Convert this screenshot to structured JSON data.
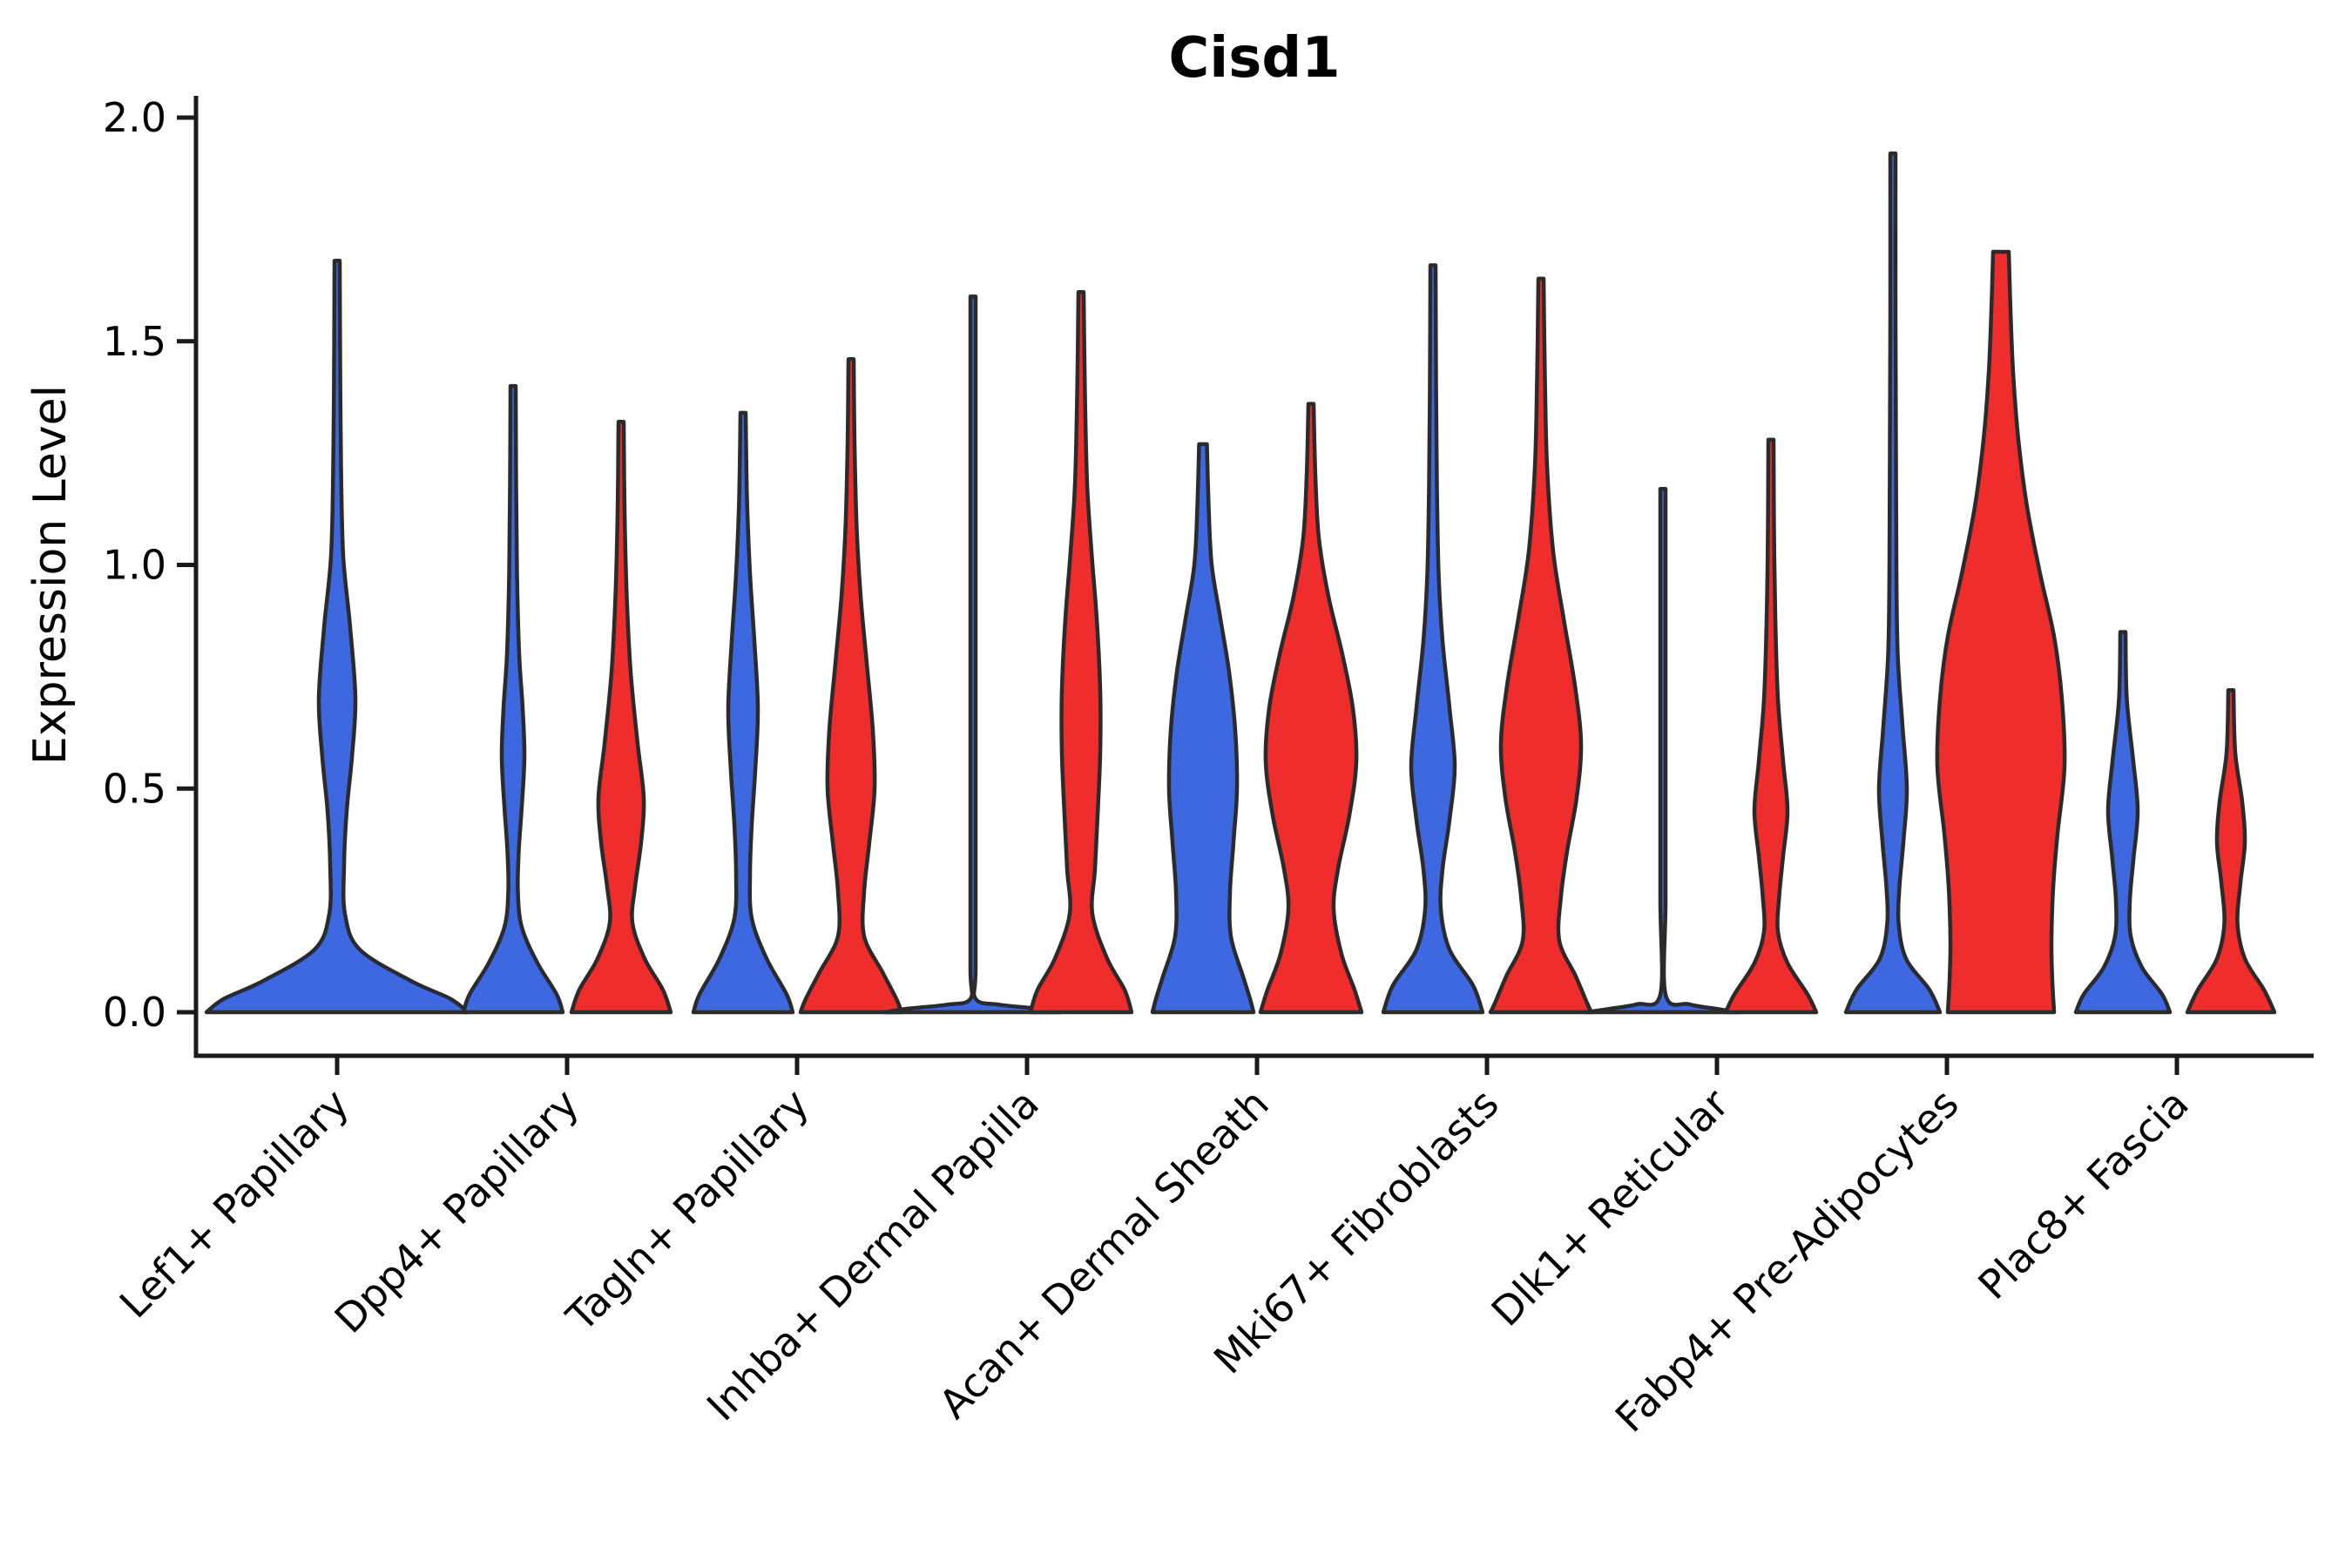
{
  "figure": {
    "title": "Cisd1",
    "y_axis": {
      "label": "Expression Level",
      "ticks": [
        {
          "label": "2.0",
          "value": 2.0
        },
        {
          "label": "1.5",
          "value": 1.5
        },
        {
          "label": "1.0",
          "value": 1.0
        },
        {
          "label": "0.5",
          "value": 0.5
        },
        {
          "label": "0.0",
          "value": 0.0
        }
      ]
    },
    "x_axis": {
      "categories": [
        "Lef1+ Papillary",
        "Dpp4+ Papillary",
        "Tagln+ Papillary",
        "Inhba+ Dermal Papilla",
        "Acan+ Dermal Sheath",
        "Mki67+ Fibroblasts",
        "Dlk1+ Reticular",
        "Fabp4+ Pre-Adipocytes",
        "Plac8+ Fascia"
      ]
    },
    "colors": {
      "blue_fill": "#3E68E0",
      "red_fill": "#EF2D2D",
      "outline": "#2B2B2B",
      "axis": "#1A1A1A"
    }
  },
  "chart_data": {
    "type": "violin",
    "title": "Cisd1",
    "xlabel": "",
    "ylabel": "Expression Level",
    "ylim": [
      -0.09,
      2.05
    ],
    "grid": false,
    "legend": "none",
    "categories": [
      "Lef1+ Papillary",
      "Dpp4+ Papillary",
      "Tagln+ Papillary",
      "Inhba+ Dermal Papilla",
      "Acan+ Dermal Sheath",
      "Mki67+ Fibroblasts",
      "Dlk1+ Reticular",
      "Fabp4+ Pre-Adipocytes",
      "Plac8+ Fascia"
    ],
    "series": [
      {
        "name": "group-blue",
        "color": "#3E68E0"
      },
      {
        "name": "group-red",
        "color": "#EF2D2D"
      }
    ],
    "max_expression": [
      {
        "category": "Lef1+ Papillary",
        "blue": 1.68,
        "red": null
      },
      {
        "category": "Dpp4+ Papillary",
        "blue": 1.4,
        "red": 1.32
      },
      {
        "category": "Tagln+ Papillary",
        "blue": 1.34,
        "red": 1.46
      },
      {
        "category": "Inhba+ Dermal Papilla",
        "blue": 1.6,
        "red": 1.61
      },
      {
        "category": "Acan+ Dermal Sheath",
        "blue": 1.27,
        "red": 1.36
      },
      {
        "category": "Mki67+ Fibroblasts",
        "blue": 1.67,
        "red": 1.64
      },
      {
        "category": "Dlk1+ Reticular",
        "blue": 1.17,
        "red": 1.28
      },
      {
        "category": "Fabp4+ Pre-Adipocytes",
        "blue": 1.92,
        "red": 1.7
      },
      {
        "category": "Plac8+ Fascia",
        "blue": 0.85,
        "red": 0.72
      }
    ],
    "violins": [
      {
        "category_index": 0,
        "group": "blue",
        "align": "center",
        "profile": [
          [
            1.68,
            3
          ],
          [
            1.45,
            3.5
          ],
          [
            1.22,
            4.5
          ],
          [
            1.02,
            7
          ],
          [
            0.86,
            15
          ],
          [
            0.7,
            21
          ],
          [
            0.57,
            17
          ],
          [
            0.45,
            11
          ],
          [
            0.33,
            8
          ],
          [
            0.22,
            9
          ],
          [
            0.14,
            26
          ],
          [
            0.07,
            85
          ],
          [
            0.03,
            130
          ],
          [
            0,
            150
          ]
        ]
      },
      {
        "category_index": 1,
        "group": "blue",
        "align": "left",
        "profile": [
          [
            1.4,
            3
          ],
          [
            1.18,
            3.5
          ],
          [
            0.98,
            4.5
          ],
          [
            0.8,
            7
          ],
          [
            0.68,
            11
          ],
          [
            0.57,
            13
          ],
          [
            0.46,
            10
          ],
          [
            0.36,
            6.5
          ],
          [
            0.27,
            5.5
          ],
          [
            0.19,
            10
          ],
          [
            0.11,
            28
          ],
          [
            0.04,
            50
          ],
          [
            0,
            57
          ]
        ]
      },
      {
        "category_index": 1,
        "group": "red",
        "align": "right",
        "profile": [
          [
            1.32,
            3
          ],
          [
            1.12,
            4
          ],
          [
            0.93,
            6.5
          ],
          [
            0.76,
            11
          ],
          [
            0.6,
            19
          ],
          [
            0.48,
            26
          ],
          [
            0.38,
            23
          ],
          [
            0.28,
            16
          ],
          [
            0.2,
            13
          ],
          [
            0.12,
            27
          ],
          [
            0.05,
            48
          ],
          [
            0,
            57
          ]
        ]
      },
      {
        "category_index": 2,
        "group": "blue",
        "align": "left",
        "profile": [
          [
            1.34,
            3
          ],
          [
            1.15,
            4.5
          ],
          [
            0.98,
            8
          ],
          [
            0.83,
            13
          ],
          [
            0.68,
            17
          ],
          [
            0.54,
            14
          ],
          [
            0.42,
            10
          ],
          [
            0.31,
            8
          ],
          [
            0.21,
            10
          ],
          [
            0.12,
            27
          ],
          [
            0.04,
            50
          ],
          [
            0,
            57
          ]
        ]
      },
      {
        "category_index": 2,
        "group": "red",
        "align": "right",
        "profile": [
          [
            1.46,
            3
          ],
          [
            1.27,
            4
          ],
          [
            1.08,
            6.5
          ],
          [
            0.93,
            11
          ],
          [
            0.78,
            18
          ],
          [
            0.63,
            25
          ],
          [
            0.5,
            27
          ],
          [
            0.38,
            21
          ],
          [
            0.27,
            15
          ],
          [
            0.17,
            15
          ],
          [
            0.09,
            36
          ],
          [
            0.03,
            52
          ],
          [
            0,
            58
          ]
        ]
      },
      {
        "category_index": 3,
        "group": "blue",
        "align": "left",
        "profile": [
          [
            1.6,
            3
          ],
          [
            1.2,
            3
          ],
          [
            0.8,
            3
          ],
          [
            0.4,
            3
          ],
          [
            0.1,
            3
          ],
          [
            0.03,
            3
          ],
          [
            0.017,
            30
          ],
          [
            0.008,
            75
          ],
          [
            0,
            100
          ]
        ]
      },
      {
        "category_index": 3,
        "group": "red",
        "align": "right",
        "profile": [
          [
            1.61,
            3
          ],
          [
            1.38,
            4.5
          ],
          [
            1.18,
            7
          ],
          [
            1.03,
            12
          ],
          [
            0.88,
            18
          ],
          [
            0.72,
            22
          ],
          [
            0.58,
            22
          ],
          [
            0.44,
            19
          ],
          [
            0.32,
            16
          ],
          [
            0.22,
            13
          ],
          [
            0.12,
            30
          ],
          [
            0.05,
            50
          ],
          [
            0,
            58
          ]
        ]
      },
      {
        "category_index": 4,
        "group": "blue",
        "align": "left",
        "profile": [
          [
            1.27,
            4.5
          ],
          [
            1.13,
            6.5
          ],
          [
            1.0,
            10
          ],
          [
            0.88,
            20
          ],
          [
            0.76,
            30
          ],
          [
            0.63,
            37
          ],
          [
            0.5,
            39
          ],
          [
            0.38,
            35
          ],
          [
            0.27,
            31
          ],
          [
            0.17,
            32
          ],
          [
            0.08,
            46
          ],
          [
            0.03,
            54
          ],
          [
            0,
            58
          ]
        ]
      },
      {
        "category_index": 4,
        "group": "red",
        "align": "right",
        "profile": [
          [
            1.36,
            3
          ],
          [
            1.2,
            5
          ],
          [
            1.06,
            9
          ],
          [
            0.93,
            20
          ],
          [
            0.8,
            36
          ],
          [
            0.68,
            48
          ],
          [
            0.56,
            52
          ],
          [
            0.44,
            44
          ],
          [
            0.32,
            31
          ],
          [
            0.23,
            26
          ],
          [
            0.13,
            35
          ],
          [
            0.05,
            50
          ],
          [
            0,
            58
          ]
        ]
      },
      {
        "category_index": 5,
        "group": "blue",
        "align": "left",
        "profile": [
          [
            1.67,
            3
          ],
          [
            1.42,
            3.5
          ],
          [
            1.18,
            4.5
          ],
          [
            0.98,
            6.5
          ],
          [
            0.83,
            11
          ],
          [
            0.68,
            19
          ],
          [
            0.55,
            25
          ],
          [
            0.43,
            19
          ],
          [
            0.32,
            11
          ],
          [
            0.23,
            9
          ],
          [
            0.14,
            19
          ],
          [
            0.06,
            46
          ],
          [
            0,
            57
          ]
        ]
      },
      {
        "category_index": 5,
        "group": "red",
        "align": "right",
        "profile": [
          [
            1.64,
            3
          ],
          [
            1.42,
            4.5
          ],
          [
            1.22,
            7
          ],
          [
            1.03,
            14
          ],
          [
            0.88,
            26
          ],
          [
            0.73,
            39
          ],
          [
            0.6,
            46
          ],
          [
            0.48,
            41
          ],
          [
            0.36,
            30
          ],
          [
            0.26,
            23
          ],
          [
            0.16,
            21
          ],
          [
            0.08,
            40
          ],
          [
            0.02,
            53
          ],
          [
            0,
            58
          ]
        ]
      },
      {
        "category_index": 6,
        "group": "blue",
        "align": "left",
        "profile": [
          [
            1.17,
            3
          ],
          [
            0.85,
            3
          ],
          [
            0.55,
            3
          ],
          [
            0.25,
            3
          ],
          [
            0.04,
            3
          ],
          [
            0.018,
            30
          ],
          [
            0.008,
            60
          ],
          [
            0,
            88
          ]
        ]
      },
      {
        "category_index": 6,
        "group": "red",
        "align": "right",
        "profile": [
          [
            1.28,
            3
          ],
          [
            1.08,
            3.5
          ],
          [
            0.88,
            5
          ],
          [
            0.7,
            8
          ],
          [
            0.56,
            14
          ],
          [
            0.45,
            19
          ],
          [
            0.35,
            14
          ],
          [
            0.26,
            9.5
          ],
          [
            0.18,
            8
          ],
          [
            0.11,
            19
          ],
          [
            0.04,
            42
          ],
          [
            0,
            52
          ]
        ]
      },
      {
        "category_index": 7,
        "group": "blue",
        "align": "left",
        "profile": [
          [
            1.92,
            3
          ],
          [
            1.55,
            3
          ],
          [
            1.25,
            3.5
          ],
          [
            1.0,
            4
          ],
          [
            0.8,
            5.5
          ],
          [
            0.64,
            11
          ],
          [
            0.5,
            16
          ],
          [
            0.38,
            12
          ],
          [
            0.28,
            7.5
          ],
          [
            0.2,
            6.5
          ],
          [
            0.12,
            15
          ],
          [
            0.05,
            42
          ],
          [
            0,
            54
          ]
        ]
      },
      {
        "category_index": 7,
        "group": "red",
        "align": "right",
        "profile": [
          [
            1.7,
            9
          ],
          [
            1.57,
            11
          ],
          [
            1.43,
            14
          ],
          [
            1.28,
            20
          ],
          [
            1.13,
            30
          ],
          [
            0.98,
            45
          ],
          [
            0.84,
            61
          ],
          [
            0.7,
            70
          ],
          [
            0.55,
            73
          ],
          [
            0.4,
            65
          ],
          [
            0.28,
            60
          ],
          [
            0.16,
            58
          ],
          [
            0.07,
            59
          ],
          [
            0,
            61
          ]
        ]
      },
      {
        "category_index": 8,
        "group": "blue",
        "align": "left",
        "profile": [
          [
            0.85,
            3
          ],
          [
            0.7,
            4.5
          ],
          [
            0.56,
            12
          ],
          [
            0.45,
            17
          ],
          [
            0.34,
            12
          ],
          [
            0.25,
            8
          ],
          [
            0.17,
            9
          ],
          [
            0.1,
            22
          ],
          [
            0.04,
            45
          ],
          [
            0,
            54
          ]
        ]
      },
      {
        "category_index": 8,
        "group": "red",
        "align": "right",
        "profile": [
          [
            0.72,
            3
          ],
          [
            0.58,
            5
          ],
          [
            0.47,
            13
          ],
          [
            0.38,
            16
          ],
          [
            0.29,
            11
          ],
          [
            0.2,
            7.5
          ],
          [
            0.12,
            16
          ],
          [
            0.05,
            38
          ],
          [
            0,
            50
          ]
        ]
      }
    ]
  }
}
